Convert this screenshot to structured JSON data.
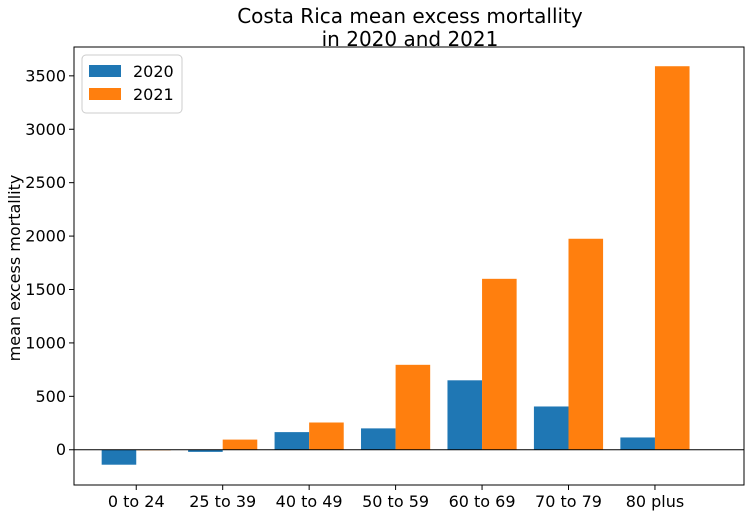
{
  "chart_data": {
    "type": "bar",
    "title_lines": [
      "Costa Rica mean excess mortallity",
      "in 2020 and 2021"
    ],
    "xlabel": "",
    "ylabel": "mean excess mortallity",
    "categories": [
      "0 to 24",
      "25 to 39",
      "40 to 49",
      "50 to 59",
      "60 to 69",
      "70 to 79",
      "80 plus"
    ],
    "series": [
      {
        "name": "2020",
        "color": "#1f77b4",
        "values": [
          -140,
          -20,
          165,
          200,
          650,
          405,
          115
        ]
      },
      {
        "name": "2021",
        "color": "#ff7f0e",
        "values": [
          -5,
          95,
          255,
          795,
          1600,
          1975,
          3590
        ]
      }
    ],
    "ylim": [
      -330,
      3770
    ],
    "yticks": [
      0,
      500,
      1000,
      1500,
      2000,
      2500,
      3000,
      3500
    ],
    "legend_position": "top-left",
    "zero_line": true,
    "grid": false
  }
}
